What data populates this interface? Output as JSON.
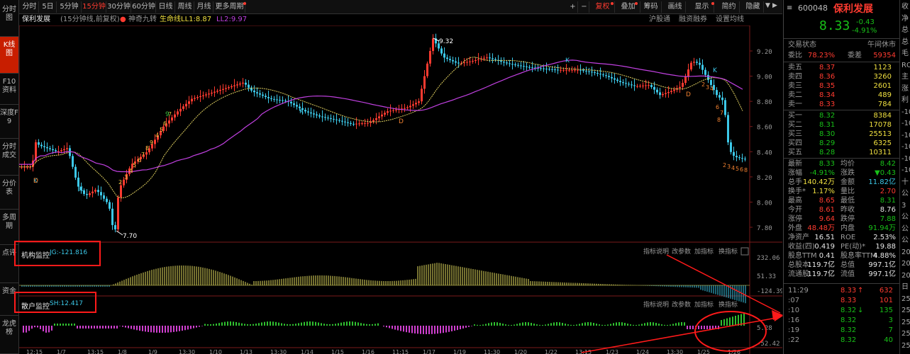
{
  "left_tabs": [
    {
      "label": "分时图",
      "active": false
    },
    {
      "label": "K线图",
      "active": true
    },
    {
      "label": "F10资料",
      "active": false
    },
    {
      "label": "深度F9",
      "active": false
    },
    {
      "label": "分时成交",
      "active": false
    },
    {
      "label": "分价表",
      "active": false
    },
    {
      "label": "多周期",
      "active": false
    },
    {
      "label": "点评",
      "active": false
    },
    {
      "label": "资金",
      "active": false
    },
    {
      "label": "龙虎榜",
      "active": false
    }
  ],
  "toolbar": {
    "periods": [
      "分时",
      "5日",
      "5分钟",
      "15分钟",
      "30分钟",
      "60分钟",
      "日线",
      "周线",
      "月线",
      "更多周期"
    ],
    "active_period": "15分钟",
    "right": {
      "plus": "+",
      "minus": "−",
      "fuquan": "复权",
      "overlay": "叠加",
      "chips": "筹码",
      "draw": "画线",
      "display": "显示",
      "simple": "简约",
      "hide": "隐藏"
    }
  },
  "infobar": {
    "name": "保利发展",
    "period_note": "(15分钟线,前复权)",
    "indicator": "神奇九转",
    "ll1": "生命线LL1:8.87",
    "ll2": "LL2:9.97",
    "hgt": "沪股通",
    "margin": "融资融券",
    "ma_setting": "设置均线"
  },
  "main_axis": [
    "9.20",
    "9.00",
    "8.80",
    "8.60",
    "8.40",
    "8.20",
    "8.00",
    "7.80"
  ],
  "labels": {
    "high": "9.32",
    "low": "7.70",
    "k": "K",
    "d": "D"
  },
  "panel1": {
    "title": "机构监控",
    "value": "JG:-121.816",
    "tools": [
      "指标说明",
      "改参数",
      "加指标",
      "换指标"
    ],
    "axis": [
      "232.06",
      "51.33",
      "-124.39"
    ],
    "close": "×"
  },
  "panel2": {
    "title": "散户监控",
    "value": "SH:12.417",
    "tools": [
      "指标说明",
      "改参数",
      "加指标",
      "换指标"
    ],
    "axis": [
      "5.28",
      "-52.42"
    ]
  },
  "time_axis": [
    "12:15",
    "1/7",
    "13:15",
    "1/8",
    "1/9",
    "13:30",
    "1/10",
    "1/13",
    "13:30",
    "1/14",
    "1/15",
    "1/16",
    "11:15",
    "1/17",
    "1/19",
    "11:30",
    "1/20",
    "1/22",
    "13:15",
    "1/23",
    "1/24",
    "13:30",
    "1/25",
    "1/26"
  ],
  "quote": {
    "code": "600048",
    "name": "保利发展",
    "price": "8.33",
    "change": "-0.43",
    "pct": "-4.91%",
    "status_label": "交易状态",
    "status": "午间休市",
    "weibi_label": "委比",
    "weibi": "78.23%",
    "weicha_label": "委差",
    "weicha": "59354",
    "asks": [
      {
        "l": "卖五",
        "p": "8.37",
        "v": "1123"
      },
      {
        "l": "卖四",
        "p": "8.36",
        "v": "3260"
      },
      {
        "l": "卖三",
        "p": "8.35",
        "v": "2601"
      },
      {
        "l": "卖二",
        "p": "8.34",
        "v": "489"
      },
      {
        "l": "卖一",
        "p": "8.33",
        "v": "784"
      }
    ],
    "bids": [
      {
        "l": "买一",
        "p": "8.32",
        "v": "8384"
      },
      {
        "l": "买二",
        "p": "8.31",
        "v": "17078"
      },
      {
        "l": "买三",
        "p": "8.30",
        "v": "25513"
      },
      {
        "l": "买四",
        "p": "8.29",
        "v": "6325"
      },
      {
        "l": "买五",
        "p": "8.28",
        "v": "10311"
      }
    ],
    "stats": [
      [
        "最新",
        "8.33",
        "均价",
        "8.42"
      ],
      [
        "涨幅",
        "-4.91%",
        "涨跌",
        "▼0.43"
      ],
      [
        "总手",
        "140.42万",
        "金额",
        "11.82亿"
      ],
      [
        "换手*",
        "1.17%",
        "量比",
        "2.70"
      ],
      [
        "最高",
        "8.65",
        "最低",
        "8.31"
      ],
      [
        "今开",
        "8.61",
        "昨收",
        "8.76"
      ],
      [
        "涨停",
        "9.64",
        "跌停",
        "7.88"
      ],
      [
        "外盘",
        "48.48万",
        "内盘",
        "91.94万"
      ],
      [
        "净资产",
        "16.51",
        "ROE",
        "2.53%"
      ],
      [
        "收益(四)",
        "0.419",
        "PE(动)*",
        "19.88"
      ],
      [
        "股息TTM",
        "0.41",
        "股息率TTM",
        "4.88%"
      ],
      [
        "总股本",
        "119.7亿",
        "总值",
        "997.1亿"
      ],
      [
        "流通股",
        "119.7亿",
        "流值",
        "997.1亿"
      ]
    ],
    "ticks": [
      {
        "t": "11:29",
        "p": "8.33",
        "a": "↑",
        "v": "632"
      },
      {
        "t": ":07",
        "p": "8.33",
        "a": "",
        "v": "101"
      },
      {
        "t": ":10",
        "p": "8.32",
        "a": "↓",
        "v": "135"
      },
      {
        "t": ":16",
        "p": "8.32",
        "a": "",
        "v": "3"
      },
      {
        "t": ":19",
        "p": "8.32",
        "a": "",
        "v": "7"
      },
      {
        "t": ":22",
        "p": "8.32",
        "a": "",
        "v": "40"
      }
    ]
  },
  "edge": [
    "收",
    "净",
    "总",
    "总",
    "毛",
    "ROE",
    "主",
    "涨",
    "利",
    "-10",
    "-10",
    "-10",
    "-10",
    "-10",
    "-10",
    "十",
    "公",
    "3",
    "公",
    "公",
    "公",
    "20",
    "20",
    "20",
    "日",
    "25",
    "25",
    "25",
    "25",
    "25"
  ],
  "colors": {
    "up": "#ff3b30",
    "down": "#3cc8e8",
    "ma_yellow": "#e0d060",
    "ma_purple": "#c040e0",
    "accent": "#c81e00"
  }
}
